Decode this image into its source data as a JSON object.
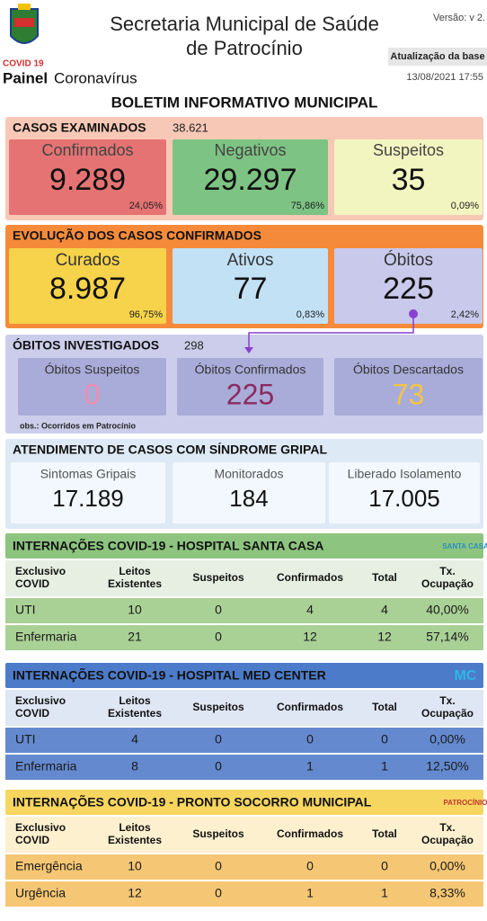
{
  "header": {
    "title_lines": [
      "Secretaria Municipal de Saúde",
      "de Patrocínio"
    ],
    "version": "Versão: v 2.",
    "update_label": "Atualização da base",
    "update_date": "13/08/2021 17:55",
    "logo_label": "COVID 19",
    "panel_bold": "Painel",
    "panel_rest": "Coronavírus"
  },
  "bulletin_title": "BOLETIM INFORMATIVO MUNICIPAL",
  "cases": {
    "title": "CASOS EXAMINADOS",
    "total": "38.621",
    "cards": [
      {
        "label": "Confirmados",
        "value": "9.289",
        "pct": "24,05%"
      },
      {
        "label": "Negativos",
        "value": "29.297",
        "pct": "75,86%"
      },
      {
        "label": "Suspeitos",
        "value": "35",
        "pct": "0,09%"
      }
    ]
  },
  "evolution": {
    "title": "EVOLUÇÃO DOS CASOS CONFIRMADOS",
    "cards": [
      {
        "label": "Curados",
        "value": "8.987",
        "pct": "96,75%"
      },
      {
        "label": "Ativos",
        "value": "77",
        "pct": "0,83%"
      },
      {
        "label": "Óbitos",
        "value": "225",
        "pct": "2,42%"
      }
    ]
  },
  "deaths": {
    "title": "ÓBITOS INVESTIGADOS",
    "total": "298",
    "cards": [
      {
        "label": "Óbitos Suspeitos",
        "value": "0"
      },
      {
        "label": "Óbitos Confirmados",
        "value": "225"
      },
      {
        "label": "Óbitos Descartados",
        "value": "73"
      }
    ],
    "note": "obs.: Ocorridos em Patrocínio"
  },
  "care": {
    "title": "ATENDIMENTO DE CASOS COM SÍNDROME GRIPAL",
    "cards": [
      {
        "label": "Sintomas Gripais",
        "value": "17.189"
      },
      {
        "label": "Monitorados",
        "value": "184"
      },
      {
        "label": "Liberado Isolamento",
        "value": "17.005"
      }
    ]
  },
  "hospitals": [
    {
      "title": "INTERNAÇÕES COVID-19 - HOSPITAL SANTA CASA",
      "logo": "SANTA CASA",
      "columns": [
        [
          "Exclusivo",
          "COVID"
        ],
        [
          "Leitos",
          "Existentes"
        ],
        [
          "Suspeitos"
        ],
        [
          "Confirmados"
        ],
        [
          "Total"
        ],
        [
          "Tx.",
          "Ocupação"
        ]
      ],
      "rows": [
        [
          "UTI",
          "10",
          "0",
          "4",
          "4",
          "40,00%"
        ],
        [
          "Enfermaria",
          "21",
          "0",
          "12",
          "12",
          "57,14%"
        ]
      ]
    },
    {
      "title": "INTERNAÇÕES COVID-19 - HOSPITAL MED CENTER",
      "logo": "MC",
      "columns": [
        [
          "Exclusivo",
          "COVID"
        ],
        [
          "Leitos",
          "Existentes"
        ],
        [
          "Suspeitos"
        ],
        [
          "Confirmados"
        ],
        [
          "Total"
        ],
        [
          "Tx.",
          "Ocupação"
        ]
      ],
      "rows": [
        [
          "UTI",
          "4",
          "0",
          "0",
          "0",
          "0,00%"
        ],
        [
          "Enfermaria",
          "8",
          "0",
          "1",
          "1",
          "12,50%"
        ]
      ]
    },
    {
      "title": "INTERNAÇÕES COVID-19 - PRONTO SOCORRO MUNICIPAL",
      "logo": "PATROCÍNIO",
      "columns": [
        [
          "Exclusivo",
          "COVID"
        ],
        [
          "Leitos",
          "Existentes"
        ],
        [
          "Suspeitos"
        ],
        [
          "Confirmados"
        ],
        [
          "Total"
        ],
        [
          "Tx.",
          "Ocupação"
        ]
      ],
      "rows": [
        [
          "Emergência",
          "10",
          "0",
          "0",
          "0",
          "0,00%"
        ],
        [
          "Urgência",
          "12",
          "0",
          "1",
          "1",
          "8,33%"
        ]
      ]
    }
  ]
}
